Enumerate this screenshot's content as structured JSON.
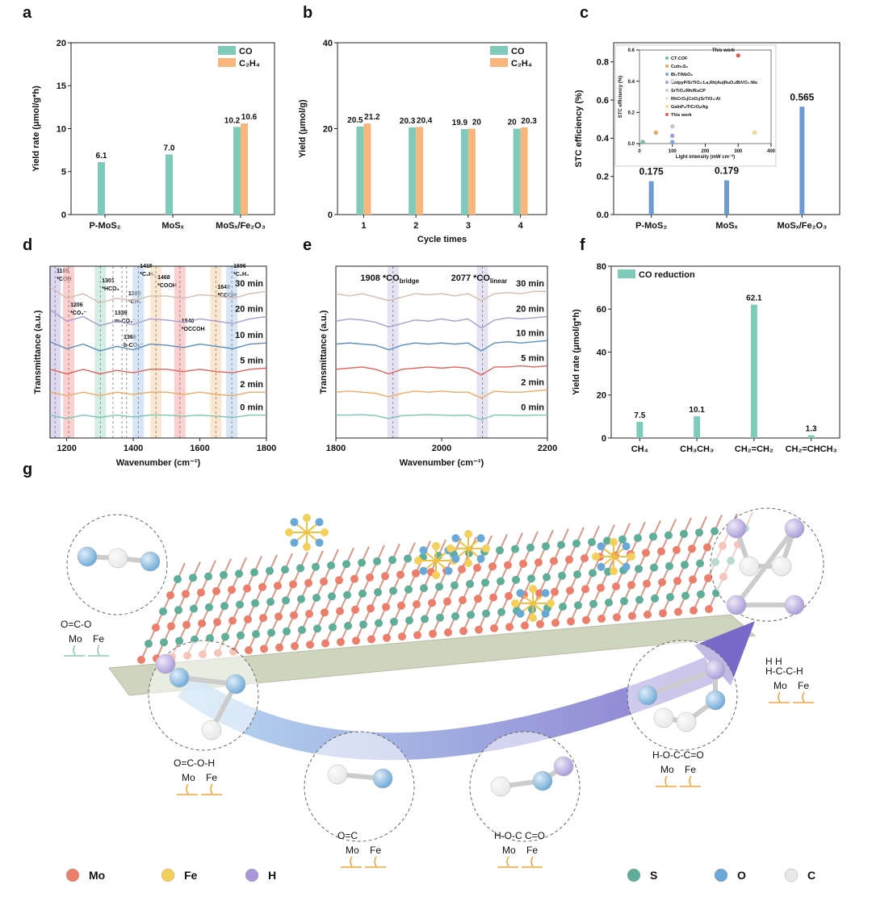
{
  "chart_data": [
    {
      "panel": "a",
      "type": "bar",
      "categories": [
        "P-MoS₂",
        "MoSₓ",
        "MoSₓ/Fe₂O₃"
      ],
      "series": [
        {
          "name": "CO",
          "color": "#7ecbbb",
          "values": [
            6.1,
            7.0,
            10.2
          ],
          "value_labels": [
            "6.1",
            "7.0",
            "10.2"
          ]
        },
        {
          "name": "C₂H₄",
          "color": "#f7b77c",
          "values": [
            null,
            null,
            10.6
          ]
        }
      ],
      "ylabel": "Yield rate (μmol/g*h)",
      "ylim": [
        0,
        20
      ],
      "yticks": [
        0,
        5,
        10,
        15,
        20
      ],
      "legend": "top-right"
    },
    {
      "panel": "b",
      "type": "bar",
      "categories": [
        "1",
        "2",
        "3",
        "4"
      ],
      "series": [
        {
          "name": "CO",
          "color": "#7ecbbb",
          "values": [
            20.5,
            20.3,
            19.9,
            20.0
          ]
        },
        {
          "name": "C₂H₄",
          "color": "#f7b77c",
          "values": [
            21.2,
            20.4,
            20.0,
            20.3
          ]
        }
      ],
      "xlabel": "Cycle times",
      "ylabel": "Yield (μmol/g)",
      "ylim": [
        0,
        40
      ],
      "yticks": [
        0,
        20,
        40
      ],
      "legend": "top-right"
    },
    {
      "panel": "c",
      "type": "bar",
      "categories": [
        "P-MoS₂",
        "MoSₓ",
        "MoSₓ/Fe₂O₃"
      ],
      "series": [
        {
          "color": "#6b9bd1",
          "values": [
            0.175,
            0.179,
            0.565
          ]
        }
      ],
      "ylabel": "STC efficiency (%)",
      "ylim": [
        0,
        0.9
      ],
      "yticks": [
        {
          "value": 0,
          "label": "0.0"
        },
        0.2,
        0.4,
        0.6,
        0.8
      ]
    },
    {
      "panel": "d",
      "type": "line",
      "x": [
        1150,
        1200,
        1250,
        1300,
        1350,
        1400,
        1450,
        1500,
        1550,
        1600,
        1650,
        1700,
        1750,
        1800
      ],
      "series": [
        {
          "name": "0 min",
          "color": "#7cc5b5",
          "values": [
            1.0,
            0.85,
            1.0,
            0.9,
            1.0,
            0.92,
            1.0,
            1.0,
            0.95,
            1.0,
            0.95,
            0.9,
            1.0,
            1.0
          ]
        },
        {
          "name": "2 min",
          "color": "#f0a860",
          "values": [
            2.0,
            1.85,
            2.0,
            1.85,
            2.0,
            1.9,
            2.0,
            2.0,
            1.9,
            2.0,
            1.9,
            1.85,
            2.0,
            2.0
          ]
        },
        {
          "name": "5 min",
          "color": "#e0645a",
          "values": [
            3.0,
            2.8,
            3.0,
            2.8,
            2.95,
            2.85,
            3.0,
            3.0,
            2.9,
            3.0,
            2.9,
            2.85,
            3.0,
            3.05
          ]
        },
        {
          "name": "10 min",
          "color": "#5a8ec0",
          "values": [
            4.2,
            3.9,
            4.1,
            3.8,
            4.0,
            3.85,
            4.1,
            4.05,
            3.95,
            4.1,
            4.0,
            3.9,
            4.1,
            4.15
          ]
        },
        {
          "name": "20 min",
          "color": "#a89bd0",
          "values": [
            5.6,
            5.1,
            5.3,
            4.9,
            5.1,
            4.95,
            5.2,
            5.15,
            5.05,
            5.2,
            5.1,
            5.0,
            5.2,
            5.3
          ]
        },
        {
          "name": "30 min",
          "color": "#d4bcae",
          "values": [
            6.6,
            6.1,
            6.3,
            5.9,
            6.1,
            6.0,
            6.2,
            6.2,
            6.1,
            6.25,
            6.2,
            6.1,
            6.3,
            6.4
          ]
        }
      ],
      "xlabel": "Wavenumber (cm⁻¹)",
      "ylabel": "Transmittance (a.u.)",
      "xlim": [
        1150,
        1800
      ],
      "xticks": [
        1200,
        1400,
        1600,
        1800
      ],
      "ylim": [
        0,
        7.5
      ],
      "annotations": [
        {
          "value": 1165,
          "label": "*COH",
          "color": "#c8c0e8"
        },
        {
          "value": 1206,
          "label": "*CO₃⁻",
          "color": "#f6b0b0"
        },
        {
          "value": 1301,
          "label": "*HCO₃",
          "color": "#b8e2d6"
        },
        {
          "value": 1339,
          "label": "m-CO₃⁻"
        },
        {
          "value": 1366,
          "label": "b-CO₃⁻"
        },
        {
          "value": 1380,
          "label": "*CH₃"
        },
        {
          "value": 1415,
          "label": "*C₂H₄",
          "color": "#bcd4ee"
        },
        {
          "value": 1468,
          "label": "*COOH",
          "color": "#f9d8b4"
        },
        {
          "value": 1540,
          "label": "*OCCOH",
          "color": "#f6b0b0"
        },
        {
          "value": 1648,
          "label": "*COOH",
          "color": "#f9d8b4"
        },
        {
          "value": 1696,
          "label": "*C₂H₄",
          "color": "#bcd4ee"
        }
      ]
    },
    {
      "panel": "e",
      "type": "line",
      "x": [
        1800,
        1825,
        1850,
        1875,
        1900,
        1925,
        1950,
        1975,
        2000,
        2025,
        2050,
        2075,
        2100,
        2125,
        2150,
        2175,
        2200
      ],
      "series": [
        {
          "name": "0 min",
          "color": "#7cc5b5",
          "values": [
            1,
            1,
            1.02,
            0.98,
            0.85,
            0.98,
            1,
            1.02,
            1,
            0.98,
            1,
            0.8,
            1,
            1,
            0.98,
            1,
            1
          ]
        },
        {
          "name": "2 min",
          "color": "#f0a860",
          "values": [
            2,
            2.05,
            2,
            1.95,
            1.8,
            1.95,
            2.05,
            2,
            2.05,
            2,
            2,
            1.75,
            2.05,
            2,
            2,
            2.05,
            2.1
          ]
        },
        {
          "name": "5 min",
          "color": "#e0645a",
          "values": [
            3,
            3.05,
            3.1,
            3,
            2.8,
            3,
            3.05,
            3.1,
            3.05,
            3.1,
            3.05,
            2.75,
            3.1,
            3.1,
            3.15,
            3.1,
            3.15
          ]
        },
        {
          "name": "10 min",
          "color": "#5a8ec0",
          "values": [
            4.1,
            4.15,
            4.1,
            4.05,
            3.85,
            4.05,
            4.15,
            4.1,
            4.15,
            4.1,
            4.15,
            3.8,
            4.15,
            4.2,
            4.15,
            4.2,
            4.25
          ]
        },
        {
          "name": "20 min",
          "color": "#a89bd0",
          "values": [
            5.1,
            5.2,
            5.15,
            5.05,
            4.85,
            5.0,
            5.15,
            5.1,
            5.2,
            5.1,
            5.2,
            4.8,
            5.15,
            5.25,
            5.2,
            5.25,
            5.3
          ]
        },
        {
          "name": "30 min",
          "color": "#d4bcae",
          "values": [
            6.3,
            6.2,
            6.3,
            6.15,
            6.0,
            6.15,
            6.3,
            6.25,
            6.3,
            6.2,
            6.3,
            6.0,
            6.3,
            6.35,
            6.3,
            6.4,
            6.4
          ]
        }
      ],
      "xlabel": "Wavenumber (cm⁻¹)",
      "ylabel": "Transmittance (a.u.)",
      "xlim": [
        1800,
        2200
      ],
      "xticks": [
        1800,
        2000,
        2200
      ],
      "ylim": [
        0,
        7.5
      ],
      "annotations": [
        {
          "value": 1908,
          "label": "*CO",
          "sub": "bridge",
          "color": "#d4d0ea"
        },
        {
          "value": 2077,
          "label": "*CO",
          "sub": "linear",
          "color": "#d4d0ea"
        }
      ]
    },
    {
      "panel": "f",
      "type": "bar",
      "categories": [
        "CH₄",
        "CH₃CH₃",
        "CH₂=CH₂",
        "CH₂=CHCH₃"
      ],
      "series": [
        {
          "name": "CO reduction",
          "color": "#7ecbbb",
          "values": [
            7.5,
            10.1,
            62.1,
            1.3
          ]
        }
      ],
      "ylabel": "Yield rate (μmol/g*h)",
      "ylim": [
        0,
        80
      ],
      "yticks": [
        0,
        20,
        40,
        60,
        80
      ],
      "legend": "top-left"
    },
    {
      "type": "scatter",
      "xlabel": "Light intensity (mW cm⁻²)",
      "ylabel": "STC efficiency (%)",
      "title": "This work",
      "xlim": [
        0,
        400
      ],
      "xticks": [
        0,
        100,
        200,
        300,
        400
      ],
      "ylim": [
        0,
        0.6
      ],
      "yticks": [
        {
          "value": 0,
          "label": "0.0"
        },
        0.2,
        0.4,
        0.6
      ],
      "series": [
        {
          "name": "CT-COF",
          "color": "#6cc2a8",
          "x": [
            10
          ],
          "values": [
            0.01
          ]
        },
        {
          "name": "CuIn₅S₈",
          "color": "#f2a654",
          "x": [
            50
          ],
          "values": [
            0.07
          ]
        },
        {
          "name": "Bi₂TiNbO₈",
          "color": "#7fa8d8",
          "x": [
            100
          ],
          "values": [
            0.01
          ]
        },
        {
          "name": "CotpyP/SrTiO₃:La,Rh|Au|RuO₂/BiVO₄:Mo",
          "color": "#a89ad8",
          "x": [
            100
          ],
          "values": [
            0.05
          ]
        },
        {
          "name": "SrTiO₃/Rh/RuCP",
          "color": "#c8c8d8",
          "x": [
            100
          ],
          "values": [
            0.11
          ]
        },
        {
          "name": "RhCrOₓ|CoOₓ|SrTiO₃:Al",
          "color": "#ece4d8",
          "x": [
            100
          ],
          "values": [
            0.4
          ]
        },
        {
          "name": "GaInP₂/TiCrOₓ/Ag",
          "color": "#f6e08a",
          "x": [
            350
          ],
          "values": [
            0.07
          ]
        },
        {
          "name": "This work",
          "color": "#e85a48",
          "x": [
            300
          ],
          "values": [
            0.565
          ]
        }
      ]
    }
  ],
  "diagram": {
    "panel": "g",
    "intermediates": [
      {
        "formula": [
          "O=C-O"
        ],
        "sites": [
          "Mo",
          "Fe"
        ]
      },
      {
        "formula": [
          "O=C-O-H"
        ],
        "sites": [
          "Mo",
          "Fe"
        ]
      },
      {
        "formula": [
          "O=C"
        ],
        "sites": [
          "Mo",
          "Fe"
        ]
      },
      {
        "formula": [
          "H-O-C  C=O"
        ],
        "sites": [
          "Mo",
          "Fe"
        ]
      },
      {
        "formula": [
          "H-O-C-C=O"
        ],
        "sites": [
          "Mo",
          "Fe"
        ]
      },
      {
        "formula": [
          "H   H",
          "H-C-C-H"
        ],
        "sites": [
          "Mo",
          "Fe"
        ]
      }
    ],
    "legend": [
      {
        "label": "Mo",
        "color": "#ec7f6c"
      },
      {
        "label": "Fe",
        "color": "#f4cf5a"
      },
      {
        "label": "H",
        "color": "#a898d8"
      },
      {
        "label": "S",
        "color": "#5fae9a"
      },
      {
        "label": "O",
        "color": "#6aa8d8"
      },
      {
        "label": "C",
        "color": "#e8e8e8"
      }
    ]
  }
}
